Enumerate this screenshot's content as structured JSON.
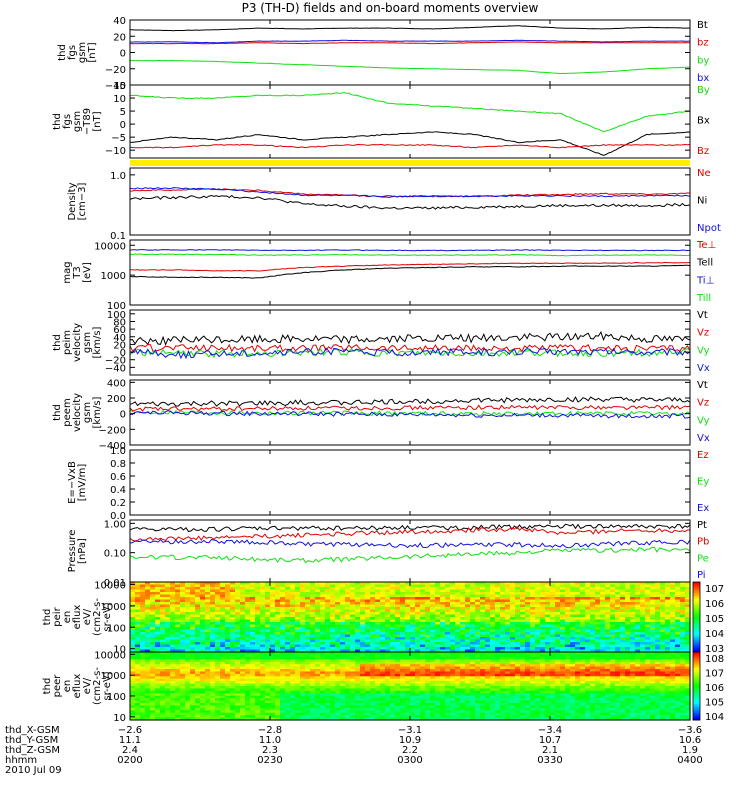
{
  "title": "P3 (TH-D) fields and on-board moments overview",
  "colors": {
    "black": "#000000",
    "red": "#e00000",
    "green": "#10e010",
    "blue": "#1010e0",
    "yellow": "#ffee00"
  },
  "panels": [
    {
      "id": "fgs-gsm",
      "ylabel": [
        "thd",
        "fgs",
        "gsm",
        "[nT]"
      ],
      "ymin": -40,
      "ymax": 40,
      "scale": "linear",
      "ticks": [
        {
          "v": 40,
          "label": "40"
        },
        {
          "v": 20,
          "label": "20"
        },
        {
          "v": 0,
          "label": "0"
        },
        {
          "v": -20,
          "label": "−20"
        },
        {
          "v": -40,
          "label": "−40"
        }
      ],
      "legend": [
        {
          "text": "Bt",
          "color": "black"
        },
        {
          "text": "bz",
          "color": "red"
        },
        {
          "text": "by",
          "color": "green"
        },
        {
          "text": "bx",
          "color": "blue"
        }
      ]
    },
    {
      "id": "fgs-gsm-t89",
      "ylabel": [
        "thd",
        "fgs",
        "gsm",
        "−T89",
        "[nT]"
      ],
      "ymin": -13,
      "ymax": 15,
      "scale": "linear",
      "ticks": [
        {
          "v": 15,
          "label": "15"
        },
        {
          "v": 10,
          "label": "10"
        },
        {
          "v": 5,
          "label": "5"
        },
        {
          "v": 0,
          "label": "0"
        },
        {
          "v": -5,
          "label": "−5"
        },
        {
          "v": -10,
          "label": "−10"
        }
      ],
      "legend": [
        {
          "text": "By",
          "color": "green"
        },
        {
          "text": "Bx",
          "color": "black"
        },
        {
          "text": "Bz",
          "color": "red"
        }
      ]
    },
    {
      "id": "density",
      "ylabel": [
        "Density",
        "[cm−3]"
      ],
      "ymin": 0.1,
      "ymax": 1.3,
      "scale": "log",
      "ticks": [
        {
          "v": 1.0,
          "label": "1.0"
        },
        {
          "v": 0.1,
          "label": "0.1"
        }
      ],
      "legend": [
        {
          "text": "Ne",
          "color": "red"
        },
        {
          "text": "Ni",
          "color": "black"
        },
        {
          "text": "Npot",
          "color": "blue"
        }
      ]
    },
    {
      "id": "temperature",
      "ylabel": [
        "mag",
        "T3",
        "[eV]"
      ],
      "ymin": 100,
      "ymax": 15000,
      "scale": "log",
      "ticks": [
        {
          "v": 10000,
          "label": "10000"
        },
        {
          "v": 1000,
          "label": "1000"
        },
        {
          "v": 100,
          "label": "100"
        }
      ],
      "legend": [
        {
          "text": "Te⊥",
          "color": "red"
        },
        {
          "text": "Tell",
          "color": "black"
        },
        {
          "text": "Ti⊥",
          "color": "blue"
        },
        {
          "text": "Till",
          "color": "green"
        }
      ]
    },
    {
      "id": "peim-velocity",
      "ylabel": [
        "thd",
        "peim",
        "velocity",
        "gsm",
        "[km/s]"
      ],
      "ymin": -60,
      "ymax": 110,
      "scale": "linear",
      "ticks": [
        {
          "v": 100,
          "label": "100"
        },
        {
          "v": 80,
          "label": "80"
        },
        {
          "v": 60,
          "label": "60"
        },
        {
          "v": 40,
          "label": "40"
        },
        {
          "v": 20,
          "label": "20"
        },
        {
          "v": 0,
          "label": "0"
        },
        {
          "v": -20,
          "label": "−20"
        },
        {
          "v": -40,
          "label": "−40"
        }
      ],
      "legend": [
        {
          "text": "Vt",
          "color": "black"
        },
        {
          "text": "Vz",
          "color": "red"
        },
        {
          "text": "Vy",
          "color": "green"
        },
        {
          "text": "Vx",
          "color": "blue"
        }
      ]
    },
    {
      "id": "peem-velocity",
      "ylabel": [
        "thd",
        "peem",
        "velocity",
        "gsm",
        "[km/s]"
      ],
      "ymin": -400,
      "ymax": 430,
      "scale": "linear",
      "ticks": [
        {
          "v": 400,
          "label": "400"
        },
        {
          "v": 200,
          "label": "200"
        },
        {
          "v": 0,
          "label": "0"
        },
        {
          "v": -200,
          "label": "−200"
        },
        {
          "v": -400,
          "label": "−400"
        }
      ],
      "legend": [
        {
          "text": "Vt",
          "color": "black"
        },
        {
          "text": "Vz",
          "color": "red"
        },
        {
          "text": "Vy",
          "color": "green"
        },
        {
          "text": "Vx",
          "color": "blue"
        }
      ]
    },
    {
      "id": "efield",
      "ylabel": [
        "E=−VxB",
        "[mV/m]"
      ],
      "ymin": 0,
      "ymax": 1,
      "scale": "linear",
      "ticks": [
        {
          "v": 1.0,
          "label": "1.0"
        },
        {
          "v": 0.8,
          "label": "0.8"
        },
        {
          "v": 0.6,
          "label": "0.6"
        },
        {
          "v": 0.4,
          "label": "0.4"
        },
        {
          "v": 0.2,
          "label": "0.2"
        },
        {
          "v": 0.0,
          "label": "0.0"
        }
      ],
      "legend": [
        {
          "text": "Ez",
          "color": "red"
        },
        {
          "text": "Ey",
          "color": "green"
        },
        {
          "text": "Ex",
          "color": "blue"
        }
      ]
    },
    {
      "id": "pressure",
      "ylabel": [
        "Pressure",
        "[nPa]"
      ],
      "ymin": 0.01,
      "ymax": 1.3,
      "scale": "log",
      "ticks": [
        {
          "v": 1.0,
          "label": "1.00"
        },
        {
          "v": 0.1,
          "label": "0.10"
        },
        {
          "v": 0.01,
          "label": "0.01"
        }
      ],
      "legend": [
        {
          "text": "Pt",
          "color": "black"
        },
        {
          "text": "Pb",
          "color": "red"
        },
        {
          "text": "Pe",
          "color": "green"
        },
        {
          "text": "Pi",
          "color": "blue"
        }
      ]
    },
    {
      "id": "peir-spectrogram",
      "ylabel": [
        "thd",
        "peir",
        "en",
        "eflux",
        "eV/",
        "(cm2-s-",
        "sr-eV)"
      ],
      "scale": "log",
      "ticks": [
        {
          "v": 10000,
          "label": "10000"
        },
        {
          "v": 1000,
          "label": "1000"
        },
        {
          "v": 100,
          "label": "100"
        },
        {
          "v": 10,
          "label": "10"
        }
      ],
      "colorbar": [
        "107",
        "106",
        "105",
        "104",
        "103"
      ]
    },
    {
      "id": "peer-spectrogram",
      "ylabel": [
        "thd",
        "peer",
        "en",
        "eflux",
        "eV/",
        "(cm2-s-",
        "sr-eV)"
      ],
      "scale": "log",
      "ticks": [
        {
          "v": 10000,
          "label": "10000"
        },
        {
          "v": 1000,
          "label": "1000"
        },
        {
          "v": 100,
          "label": "100"
        },
        {
          "v": 10,
          "label": "10"
        }
      ],
      "colorbar": [
        "108",
        "107",
        "106",
        "105",
        "104"
      ]
    }
  ],
  "xaxis": {
    "row_labels": [
      "thd_X-GSM",
      "thd_Y-GSM",
      "thd_Z-GSM",
      "hhmm",
      "2010 Jul 09"
    ],
    "columns": [
      {
        "x": "−2.6",
        "y": "11.1",
        "z": "2.4",
        "t": "0200"
      },
      {
        "x": "−2.8",
        "y": "11.0",
        "z": "2.3",
        "t": "0230"
      },
      {
        "x": "−3.1",
        "y": "10.9",
        "z": "2.2",
        "t": "0300"
      },
      {
        "x": "−3.4",
        "y": "10.7",
        "z": "2.1",
        "t": "0330"
      },
      {
        "x": "−3.6",
        "y": "10.6",
        "z": "1.9",
        "t": "0400"
      }
    ]
  },
  "chart_data": {
    "type": "line",
    "x_range": [
      "0200",
      "0400"
    ],
    "series": [
      {
        "panel": "fgs-gsm",
        "name": "Bt",
        "values": [
          28,
          27,
          28,
          30,
          29,
          30,
          30,
          29,
          31,
          33,
          30,
          29,
          31,
          30
        ]
      },
      {
        "panel": "fgs-gsm",
        "name": "bz",
        "values": [
          11,
          11,
          11,
          12,
          11,
          12,
          12,
          11,
          12,
          13,
          12,
          12,
          12,
          12
        ]
      },
      {
        "panel": "fgs-gsm",
        "name": "by",
        "values": [
          -10,
          -10,
          -11,
          -13,
          -15,
          -17,
          -19,
          -20,
          -21,
          -22,
          -26,
          -24,
          -20,
          -18
        ]
      },
      {
        "panel": "fgs-gsm",
        "name": "bx",
        "values": [
          13,
          13,
          12,
          14,
          14,
          15,
          14,
          14,
          14,
          15,
          14,
          13,
          14,
          14
        ]
      },
      {
        "panel": "fgs-gsm-t89",
        "name": "By",
        "values": [
          11,
          10,
          10,
          11,
          11,
          12,
          8,
          7,
          6,
          5,
          4,
          -3,
          3,
          5
        ]
      },
      {
        "panel": "fgs-gsm-t89",
        "name": "Bx",
        "values": [
          -7,
          -5,
          -6,
          -4,
          -6,
          -5,
          -4,
          -3,
          -4,
          -7,
          -6,
          -12,
          -4,
          -3
        ]
      },
      {
        "panel": "fgs-gsm-t89",
        "name": "Bz",
        "values": [
          -9,
          -9,
          -8,
          -8,
          -9,
          -8,
          -8,
          -8,
          -9,
          -8,
          -9,
          -8,
          -8,
          -8
        ]
      },
      {
        "panel": "density",
        "name": "Ne",
        "values": [
          0.55,
          0.56,
          0.58,
          0.55,
          0.48,
          0.46,
          0.43,
          0.45,
          0.44,
          0.46,
          0.47,
          0.49,
          0.48,
          0.49
        ]
      },
      {
        "panel": "density",
        "name": "Ni",
        "values": [
          0.4,
          0.42,
          0.44,
          0.42,
          0.33,
          0.3,
          0.28,
          0.28,
          0.29,
          0.3,
          0.31,
          0.31,
          0.31,
          0.32
        ]
      },
      {
        "panel": "density",
        "name": "Npot",
        "values": [
          0.6,
          0.6,
          0.58,
          0.52,
          0.46,
          0.45,
          0.44,
          0.44,
          0.44,
          0.45,
          0.45,
          0.44,
          0.45,
          0.45
        ]
      },
      {
        "panel": "temperature",
        "name": "Te⊥",
        "values": [
          1500,
          1500,
          1400,
          1400,
          1800,
          2000,
          2200,
          2300,
          2400,
          2500,
          2500,
          2500,
          2600,
          2600
        ]
      },
      {
        "panel": "temperature",
        "name": "Tell",
        "values": [
          900,
          850,
          850,
          800,
          1200,
          1500,
          1700,
          1800,
          1900,
          1900,
          2000,
          2000,
          2000,
          2100
        ]
      },
      {
        "panel": "temperature",
        "name": "Ti⊥",
        "values": [
          7000,
          7000,
          7000,
          6800,
          6800,
          6900,
          6800,
          6700,
          6800,
          6900,
          6800,
          6800,
          6700,
          6800
        ]
      },
      {
        "panel": "temperature",
        "name": "Till",
        "values": [
          5000,
          5000,
          4900,
          4700,
          4700,
          4800,
          4700,
          4600,
          4700,
          4800,
          4500,
          4700,
          4700,
          4600
        ]
      },
      {
        "panel": "peim-velocity",
        "name": "Vt",
        "values": [
          30,
          30,
          32,
          33,
          35,
          33,
          34,
          35,
          35,
          38,
          40,
          42,
          35,
          33
        ]
      },
      {
        "panel": "peim-velocity",
        "name": "Vz",
        "values": [
          10,
          12,
          11,
          10,
          10,
          12,
          11,
          10,
          9,
          10,
          11,
          10,
          10,
          11
        ]
      },
      {
        "panel": "peim-velocity",
        "name": "Vy",
        "values": [
          0,
          -2,
          -5,
          -3,
          -2,
          0,
          -4,
          -3,
          -5,
          -2,
          -3,
          -4,
          -2,
          -1
        ]
      },
      {
        "panel": "peim-velocity",
        "name": "Vx",
        "values": [
          5,
          -8,
          -3,
          -2,
          0,
          2,
          -2,
          0,
          -1,
          0,
          2,
          1,
          0,
          1
        ]
      },
      {
        "panel": "peem-velocity",
        "name": "Vt",
        "values": [
          120,
          120,
          130,
          130,
          140,
          140,
          150,
          160,
          170,
          170,
          180,
          180,
          170,
          170
        ]
      },
      {
        "panel": "peem-velocity",
        "name": "Vz",
        "values": [
          60,
          60,
          60,
          65,
          70,
          70,
          75,
          75,
          80,
          80,
          80,
          80,
          80,
          80
        ]
      },
      {
        "panel": "peem-velocity",
        "name": "Vy",
        "values": [
          20,
          20,
          15,
          10,
          10,
          5,
          5,
          5,
          0,
          0,
          0,
          0,
          0,
          0
        ]
      },
      {
        "panel": "peem-velocity",
        "name": "Vx",
        "values": [
          10,
          10,
          5,
          0,
          0,
          -5,
          -10,
          -10,
          -20,
          -20,
          -20,
          -30,
          -30,
          -30
        ]
      },
      {
        "panel": "pressure",
        "name": "Pt",
        "values": [
          0.62,
          0.62,
          0.64,
          0.68,
          0.7,
          0.7,
          0.71,
          0.72,
          0.73,
          0.76,
          0.8,
          0.78,
          0.77,
          0.78
        ]
      },
      {
        "panel": "pressure",
        "name": "Pb",
        "values": [
          0.3,
          0.3,
          0.32,
          0.36,
          0.4,
          0.45,
          0.5,
          0.55,
          0.6,
          0.65,
          0.45,
          0.55,
          0.58,
          0.58
        ]
      },
      {
        "panel": "pressure",
        "name": "Pe",
        "values": [
          0.07,
          0.07,
          0.07,
          0.06,
          0.055,
          0.06,
          0.07,
          0.08,
          0.09,
          0.1,
          0.12,
          0.12,
          0.13,
          0.12
        ]
      },
      {
        "panel": "pressure",
        "name": "Pi",
        "values": [
          0.25,
          0.24,
          0.24,
          0.23,
          0.2,
          0.19,
          0.18,
          0.18,
          0.19,
          0.19,
          0.17,
          0.2,
          0.22,
          0.24
        ]
      }
    ]
  }
}
